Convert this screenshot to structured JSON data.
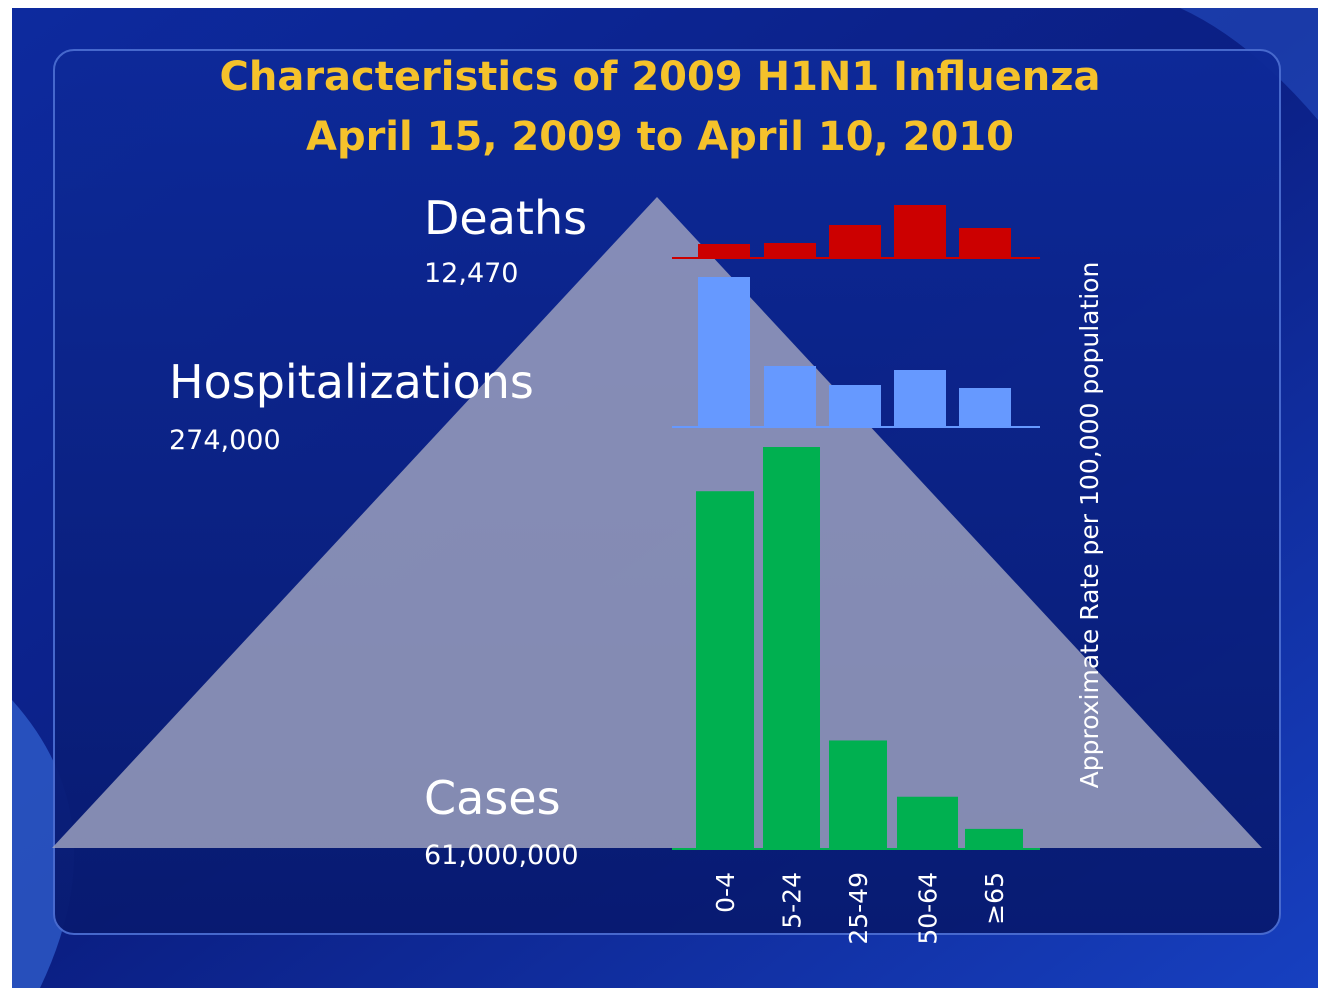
{
  "slide": {
    "title_line1": "Characteristics of 2009 H1N1 Influenza",
    "title_line2": "April 15, 2009 to April 10, 2010"
  },
  "colors": {
    "background_dark": "#0a1d7a",
    "background_mid": "#1434b0",
    "title": "#f5c22b",
    "triangle": "#a0a4c0",
    "deaths": "#cc0000",
    "hospitalizations": "#6699ff",
    "cases": "#00b050",
    "text": "#ffffff"
  },
  "pyramid": {
    "levels": [
      {
        "name": "Deaths",
        "count": "12,470"
      },
      {
        "name": "Hospitalizations",
        "count": "274,000"
      },
      {
        "name": "Cases",
        "count": "61,000,000"
      }
    ]
  },
  "chart_data": {
    "type": "bar",
    "categories": [
      "0-4",
      "5-24",
      "25-49",
      "50-64",
      "≥65"
    ],
    "ylabel": "Approximate Rate per 100,000 population",
    "panels": [
      {
        "key": "deaths",
        "values": [
          14,
          15,
          33,
          53,
          30
        ]
      },
      {
        "key": "hospitalizations",
        "values": [
          150,
          61,
          42,
          57,
          39
        ]
      },
      {
        "key": "cases",
        "values": [
          89,
          100,
          27,
          13,
          5
        ]
      }
    ]
  }
}
